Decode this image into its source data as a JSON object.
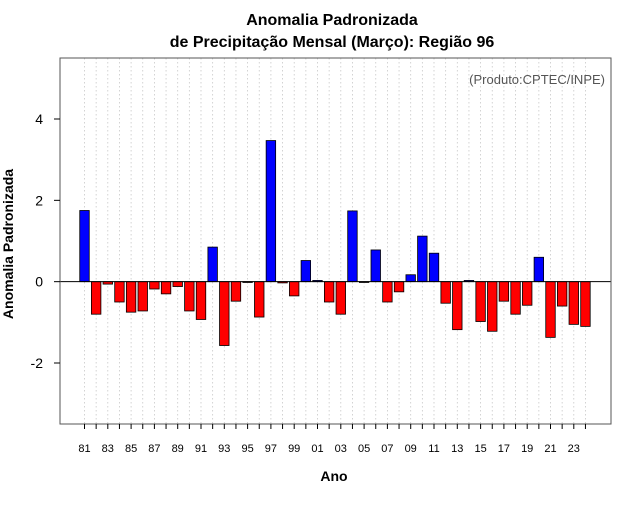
{
  "chart_data": {
    "type": "bar",
    "title_line1": "Anomalia Padronizada",
    "title_line2": "de Precipitação Mensal (Março): Região 96",
    "annotation": "(Produto:CPTEC/INPE)",
    "xlabel": "Ano",
    "ylabel": "Anomalia Padronizada",
    "ylim": [
      -3.5,
      5.5
    ],
    "yticks": [
      -2,
      0,
      2,
      4
    ],
    "ytick_labels": [
      "-2",
      "0",
      "2",
      "4"
    ],
    "categories": [
      "81",
      "82",
      "83",
      "84",
      "85",
      "86",
      "87",
      "88",
      "89",
      "90",
      "91",
      "92",
      "93",
      "94",
      "95",
      "96",
      "97",
      "98",
      "99",
      "00",
      "01",
      "02",
      "03",
      "04",
      "05",
      "06",
      "07",
      "08",
      "09",
      "10",
      "11",
      "12",
      "13",
      "14",
      "15",
      "16",
      "17",
      "18",
      "19",
      "20",
      "21",
      "22",
      "23",
      "24"
    ],
    "xtick_labels": [
      "81",
      "83",
      "85",
      "87",
      "89",
      "91",
      "93",
      "95",
      "97",
      "99",
      "01",
      "03",
      "05",
      "07",
      "09",
      "11",
      "13",
      "15",
      "17",
      "19",
      "21",
      "23"
    ],
    "values": [
      1.75,
      -0.8,
      -0.06,
      -0.5,
      -0.75,
      -0.72,
      -0.18,
      -0.3,
      -0.12,
      -0.72,
      -0.93,
      0.85,
      -1.57,
      -0.48,
      -0.02,
      -0.87,
      3.47,
      -0.03,
      -0.35,
      0.52,
      0.03,
      -0.5,
      -0.8,
      1.74,
      -0.02,
      0.78,
      -0.5,
      -0.25,
      0.17,
      1.12,
      0.7,
      -0.53,
      -1.18,
      0.03,
      -0.98,
      -1.22,
      -0.48,
      -0.8,
      -0.58,
      0.6,
      -1.37,
      -0.6,
      -1.05,
      -1.1
    ],
    "grid": "vertical dotted",
    "colors": {
      "positive": "#0000ff",
      "negative": "#ff0000",
      "zero_line": "#000000",
      "grid": "#c8c8c8",
      "frame": "#555555"
    }
  }
}
